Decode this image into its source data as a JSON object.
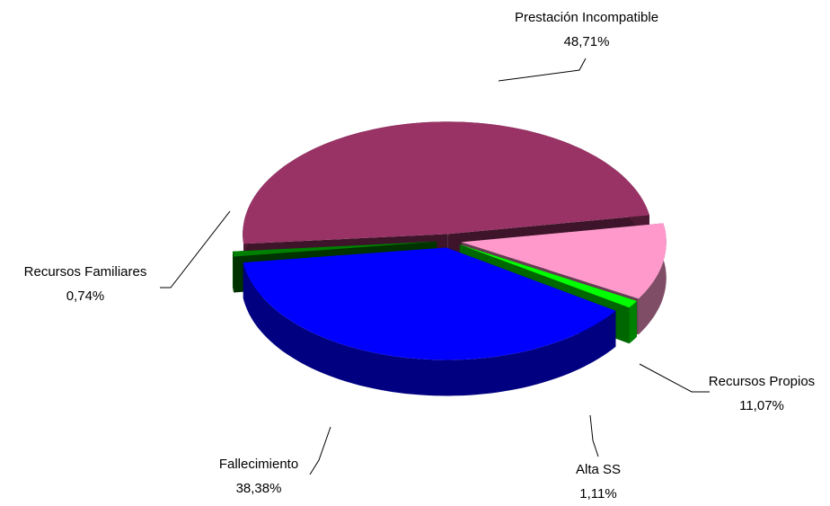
{
  "chart_data": {
    "type": "pie",
    "categories": [
      "Prestación Incompatible",
      "Recursos Propios",
      "Alta SS",
      "Fallecimiento",
      "Recursos Familiares"
    ],
    "values": [
      48.71,
      11.07,
      1.11,
      38.38,
      0.74
    ],
    "value_labels": [
      "48,71%",
      "11,07%",
      "1,11%",
      "38,38%",
      "0,74%"
    ],
    "colors": [
      "#993366",
      "#ff99cc",
      "#00ff00",
      "#0000ff",
      "#008000"
    ]
  }
}
